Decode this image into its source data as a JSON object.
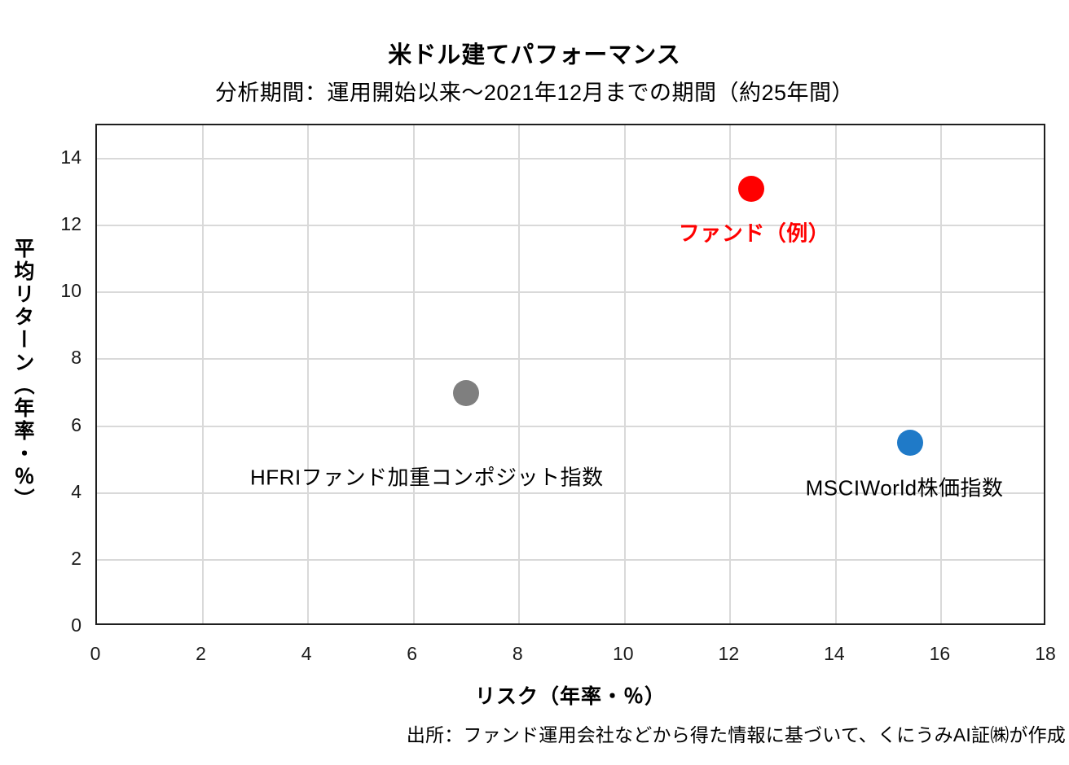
{
  "page": {
    "background": "#FFFFFF"
  },
  "chart_data": {
    "type": "scatter",
    "title": "米ドル建てパフォーマンス",
    "subtitle": "分析期間：運用開始以来～2021年12月までの期間（約25年間）",
    "xlabel": "リスク（年率・％）",
    "ylabel": "平均リターン（年率・％）",
    "source": "出所：ファンド運用会社などから得た情報に基づいて、くにうみAI証㈱が作成",
    "xlim": [
      0,
      18
    ],
    "ylim": [
      0,
      15
    ],
    "x_ticks": [
      0,
      2,
      4,
      6,
      8,
      10,
      12,
      14,
      16,
      18
    ],
    "y_ticks": [
      0,
      2,
      4,
      6,
      8,
      10,
      12,
      14
    ],
    "grid": true,
    "legend": false,
    "colors": {
      "gridline": "#D9D9D9",
      "plot_border": "#1F1F1F",
      "text": "#000000"
    },
    "series": [
      {
        "name": "ファンド（例）",
        "x": 12.4,
        "y": 13.1,
        "marker_color": "#FF0000",
        "label_color": "#FF0000",
        "label_bold": true,
        "label_x": 12.45,
        "label_y": 11.8
      },
      {
        "name": "HFRIファンド加重コンポジット指数",
        "x": 7.0,
        "y": 7.0,
        "marker_color": "#7F7F7F",
        "label_color": "#000000",
        "label_bold": false,
        "label_x": 6.25,
        "label_y": 4.5
      },
      {
        "name": "MSCIWorld株価指数",
        "x": 15.4,
        "y": 5.5,
        "marker_color": "#1F7AC8",
        "label_color": "#000000",
        "label_bold": false,
        "label_x": 15.3,
        "label_y": 4.2
      }
    ]
  }
}
